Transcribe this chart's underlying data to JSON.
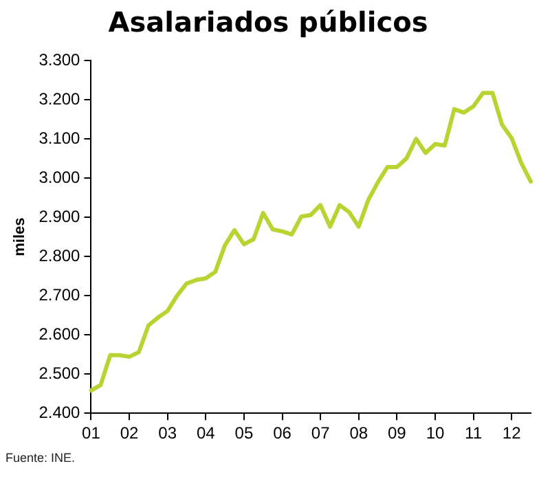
{
  "chart_data": {
    "type": "line",
    "title": "Asalariados públicos",
    "ylabel": "miles",
    "categories": [
      "01",
      null,
      null,
      null,
      "02",
      null,
      null,
      null,
      "03",
      null,
      null,
      null,
      "04",
      null,
      null,
      null,
      "05",
      null,
      null,
      null,
      "06",
      null,
      null,
      null,
      "07",
      null,
      null,
      null,
      "08",
      null,
      null,
      null,
      "09",
      null,
      null,
      null,
      "10",
      null,
      null,
      null,
      "11",
      null,
      null,
      null,
      "12",
      null,
      null
    ],
    "series": [
      {
        "color": "#b8d432",
        "values": [
          2458,
          2472,
          2548,
          2548,
          2544,
          2556,
          2624,
          2644,
          2661,
          2700,
          2731,
          2740,
          2744,
          2761,
          2828,
          2867,
          2831,
          2844,
          2911,
          2869,
          2864,
          2856,
          2902,
          2906,
          2931,
          2876,
          2931,
          2913,
          2876,
          2944,
          2989,
          3028,
          3028,
          3050,
          3100,
          3064,
          3087,
          3083,
          3176,
          3167,
          3183,
          3217,
          3217,
          3136,
          3102,
          3039,
          2991
        ]
      }
    ],
    "ylim": [
      2400,
      3300
    ],
    "yticks": [
      {
        "value": 2400,
        "label": "2.400"
      },
      {
        "value": 2500,
        "label": "2.500"
      },
      {
        "value": 2600,
        "label": "2.600"
      },
      {
        "value": 2700,
        "label": "2.700"
      },
      {
        "value": 2800,
        "label": "2.800"
      },
      {
        "value": 2900,
        "label": "2.900"
      },
      {
        "value": 3000,
        "label": "3.000"
      },
      {
        "value": 3100,
        "label": "3.100"
      },
      {
        "value": 3200,
        "label": "3.200"
      },
      {
        "value": 3300,
        "label": "3.300"
      }
    ],
    "grid": false,
    "legend": false,
    "marker": "none",
    "line_style": "solid",
    "annotations": [
      "Fuente: INE."
    ]
  }
}
